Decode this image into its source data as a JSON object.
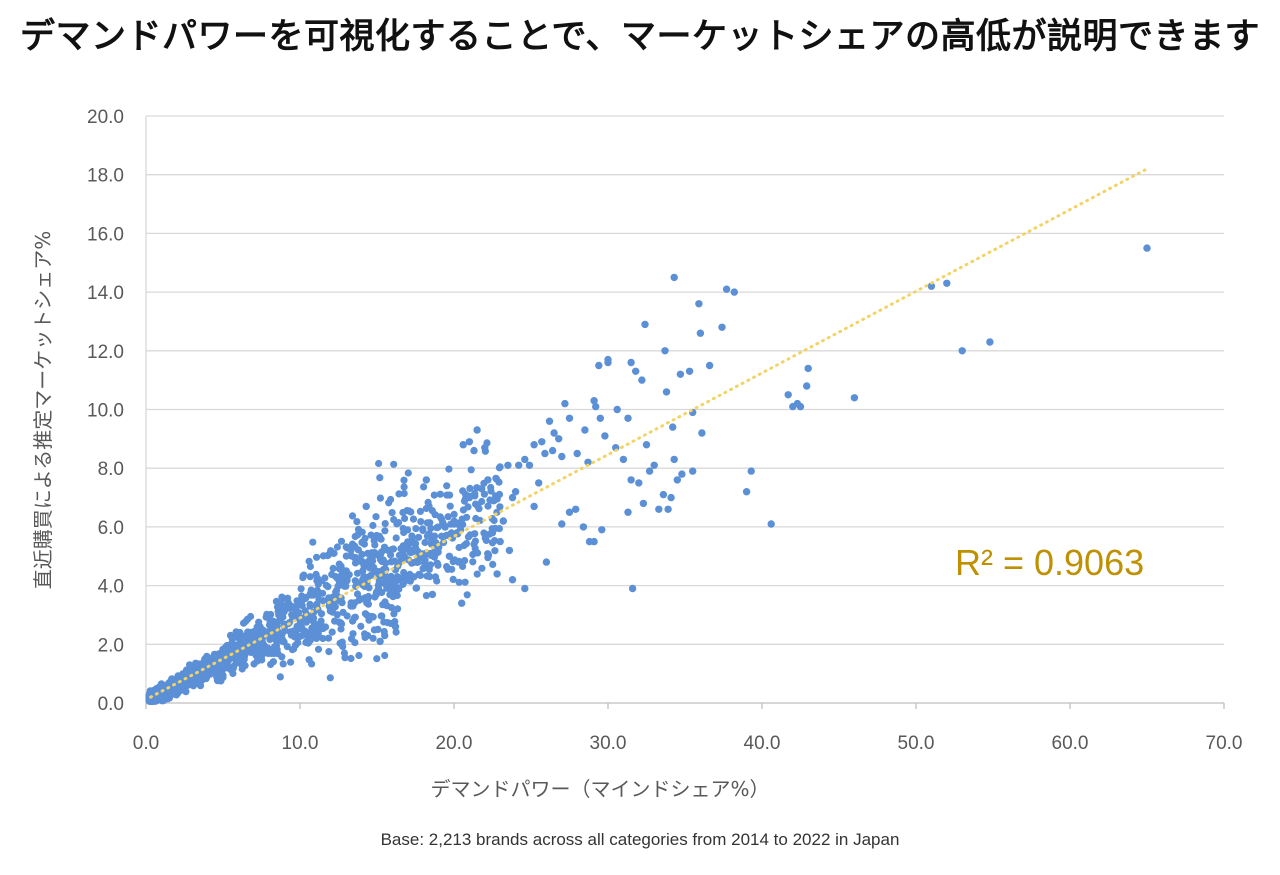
{
  "title": "デマンドパワーを可視化することで、マーケットシェアの高低が説明できます",
  "footnote": "Base: 2,213 brands across all categories from 2014 to 2022 in Japan",
  "chart_data": {
    "type": "scatter",
    "xlabel": "デマンドパワー（マインドシェア%）",
    "ylabel": "直近購買による推定マーケットシェア%",
    "xlim": [
      0,
      70
    ],
    "ylim": [
      0,
      20
    ],
    "xticks": [
      "0.0",
      "10.0",
      "20.0",
      "30.0",
      "40.0",
      "50.0",
      "60.0",
      "70.0"
    ],
    "yticks": [
      "0.0",
      "2.0",
      "4.0",
      "6.0",
      "8.0",
      "10.0",
      "12.0",
      "14.0",
      "16.0",
      "18.0",
      "20.0"
    ],
    "grid": "horizontal",
    "point_color": "#5b8fd6",
    "trendline": {
      "type": "linear",
      "color": "#f2d366",
      "style": "dotted",
      "from": [
        0.3,
        0.2
      ],
      "to": [
        65,
        18.2
      ]
    },
    "annotation": "R² = 0.9063",
    "annotation_color": "#bf9000",
    "points": [
      [
        65.0,
        15.5
      ],
      [
        54.8,
        12.3
      ],
      [
        53.0,
        12.0
      ],
      [
        52.0,
        14.3
      ],
      [
        51.0,
        14.2
      ],
      [
        46.0,
        10.4
      ],
      [
        43.0,
        11.4
      ],
      [
        42.9,
        10.8
      ],
      [
        42.5,
        10.1
      ],
      [
        42.3,
        10.2
      ],
      [
        41.7,
        10.5
      ],
      [
        40.6,
        6.1
      ],
      [
        39.3,
        7.9
      ],
      [
        39.0,
        7.2
      ],
      [
        38.2,
        14.0
      ],
      [
        37.7,
        14.1
      ],
      [
        37.4,
        12.8
      ],
      [
        36.6,
        11.5
      ],
      [
        36.1,
        9.2
      ],
      [
        36.0,
        12.6
      ],
      [
        35.9,
        13.6
      ],
      [
        35.5,
        9.9
      ],
      [
        35.3,
        11.3
      ],
      [
        34.8,
        7.8
      ],
      [
        34.7,
        11.2
      ],
      [
        34.5,
        7.6
      ],
      [
        34.3,
        14.5
      ],
      [
        34.3,
        8.3
      ],
      [
        34.2,
        9.4
      ],
      [
        34.1,
        7.0
      ],
      [
        33.8,
        10.6
      ],
      [
        33.7,
        12.0
      ],
      [
        33.6,
        7.1
      ],
      [
        33.3,
        6.6
      ],
      [
        33.0,
        8.1
      ],
      [
        32.7,
        7.9
      ],
      [
        32.5,
        8.8
      ],
      [
        32.4,
        12.9
      ],
      [
        32.3,
        6.8
      ],
      [
        32.2,
        11.0
      ],
      [
        32.0,
        7.5
      ],
      [
        31.8,
        11.3
      ],
      [
        31.5,
        11.6
      ],
      [
        31.5,
        7.6
      ],
      [
        31.6,
        3.9
      ],
      [
        31.3,
        9.7
      ],
      [
        31.3,
        6.5
      ],
      [
        31.0,
        8.3
      ],
      [
        30.6,
        10.0
      ],
      [
        30.0,
        11.6
      ],
      [
        30.0,
        11.7
      ],
      [
        29.8,
        9.1
      ],
      [
        29.6,
        5.9
      ],
      [
        29.5,
        9.7
      ],
      [
        29.4,
        11.5
      ],
      [
        29.2,
        10.1
      ],
      [
        29.1,
        5.5
      ],
      [
        28.8,
        5.5
      ],
      [
        28.7,
        8.2
      ],
      [
        29.1,
        10.3
      ],
      [
        28.4,
        6.0
      ],
      [
        28.0,
        8.5
      ],
      [
        27.9,
        6.6
      ],
      [
        27.5,
        9.7
      ],
      [
        27.2,
        10.2
      ],
      [
        27.0,
        8.4
      ],
      [
        27.0,
        6.1
      ],
      [
        26.8,
        9.0
      ],
      [
        26.5,
        9.2
      ],
      [
        26.4,
        8.6
      ],
      [
        26.2,
        9.6
      ],
      [
        25.9,
        8.5
      ],
      [
        25.7,
        8.9
      ],
      [
        26.0,
        4.8
      ],
      [
        25.5,
        7.5
      ],
      [
        25.2,
        8.8
      ],
      [
        24.9,
        8.1
      ],
      [
        24.6,
        3.9
      ],
      [
        24.6,
        8.3
      ],
      [
        24.2,
        8.1
      ],
      [
        24.0,
        7.2
      ],
      [
        23.8,
        7.0
      ],
      [
        23.5,
        8.1
      ],
      [
        23.8,
        4.2
      ],
      [
        23.6,
        5.2
      ],
      [
        23.2,
        6.2
      ],
      [
        22.8,
        4.4
      ],
      [
        22.6,
        6.9
      ],
      [
        22.5,
        5.8
      ],
      [
        22.0,
        8.7
      ],
      [
        21.8,
        7.3
      ],
      [
        21.5,
        9.3
      ],
      [
        21.3,
        8.6
      ],
      [
        21.0,
        7.0
      ],
      [
        21.0,
        8.9
      ],
      [
        20.6,
        8.8
      ],
      [
        20.5,
        3.4
      ],
      [
        20.3,
        4.8
      ],
      [
        19.7,
        5.0
      ],
      [
        19.3,
        6.1
      ],
      [
        19.0,
        5.3
      ],
      [
        18.6,
        3.7
      ],
      [
        18.2,
        7.6
      ],
      [
        17.4,
        4.3
      ],
      [
        16.2,
        2.6
      ],
      [
        15.2,
        2.1
      ],
      [
        15.5,
        2.3
      ],
      [
        14.3,
        6.7
      ],
      [
        13.0,
        4.5
      ],
      [
        12.2,
        5.1
      ],
      [
        42.0,
        10.1
      ],
      [
        35.5,
        7.9
      ],
      [
        28.5,
        9.3
      ],
      [
        30.5,
        8.7
      ],
      [
        33.9,
        6.6
      ],
      [
        27.5,
        6.5
      ],
      [
        25.2,
        6.7
      ],
      [
        22.2,
        7.6
      ],
      [
        23.0,
        5.5
      ],
      [
        20.0,
        6.1
      ]
    ]
  }
}
